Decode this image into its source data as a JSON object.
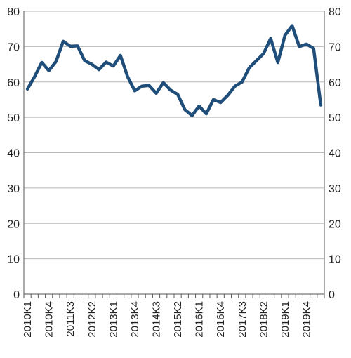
{
  "chart_data": {
    "type": "line",
    "title": "",
    "xlabel": "",
    "ylabel": "",
    "ylim": [
      0,
      80
    ],
    "y_ticks": [
      0,
      10,
      20,
      30,
      40,
      50,
      60,
      70,
      80
    ],
    "y_axis_sides": "left-and-right",
    "grid": true,
    "legend": "none",
    "x": [
      "2010K1",
      "2010K2",
      "2010K3",
      "2010K4",
      "2011K1",
      "2011K2",
      "2011K3",
      "2011K4",
      "2012K1",
      "2012K2",
      "2012K3",
      "2012K4",
      "2013K1",
      "2013K2",
      "2013K3",
      "2013K4",
      "2014K1",
      "2014K2",
      "2014K3",
      "2014K4",
      "2015K1",
      "2015K2",
      "2015K3",
      "2015K4",
      "2016K1",
      "2016K2",
      "2016K3",
      "2016K4",
      "2017K1",
      "2017K2",
      "2017K3",
      "2017K4",
      "2018K1",
      "2018K2",
      "2018K3",
      "2018K4",
      "2019K1",
      "2019K2",
      "2019K3",
      "2019K4",
      "2020K1",
      "2020K2"
    ],
    "x_tick_labels": [
      "2010K1",
      "2010K4",
      "2011K3",
      "2012K2",
      "2013K1",
      "2013K4",
      "2014K3",
      "2015K2",
      "2016K1",
      "2016K4",
      "2017K3",
      "2018K2",
      "2019K1",
      "2019K4"
    ],
    "series": [
      {
        "values": [
          58,
          61.5,
          65.5,
          63.2,
          65.8,
          71.5,
          70.1,
          70.2,
          66,
          65,
          63.5,
          65.6,
          64.5,
          67.5,
          61.5,
          57.5,
          58.8,
          59,
          56.8,
          59.8,
          57.7,
          56.5,
          52.2,
          50.5,
          53.2,
          51,
          55,
          54.2,
          56.2,
          58.8,
          60,
          64,
          66,
          68,
          72.3,
          65.5,
          73.2,
          75.9,
          70,
          70.7,
          69.5,
          53.5
        ],
        "color": "#1f4e7a"
      }
    ]
  }
}
